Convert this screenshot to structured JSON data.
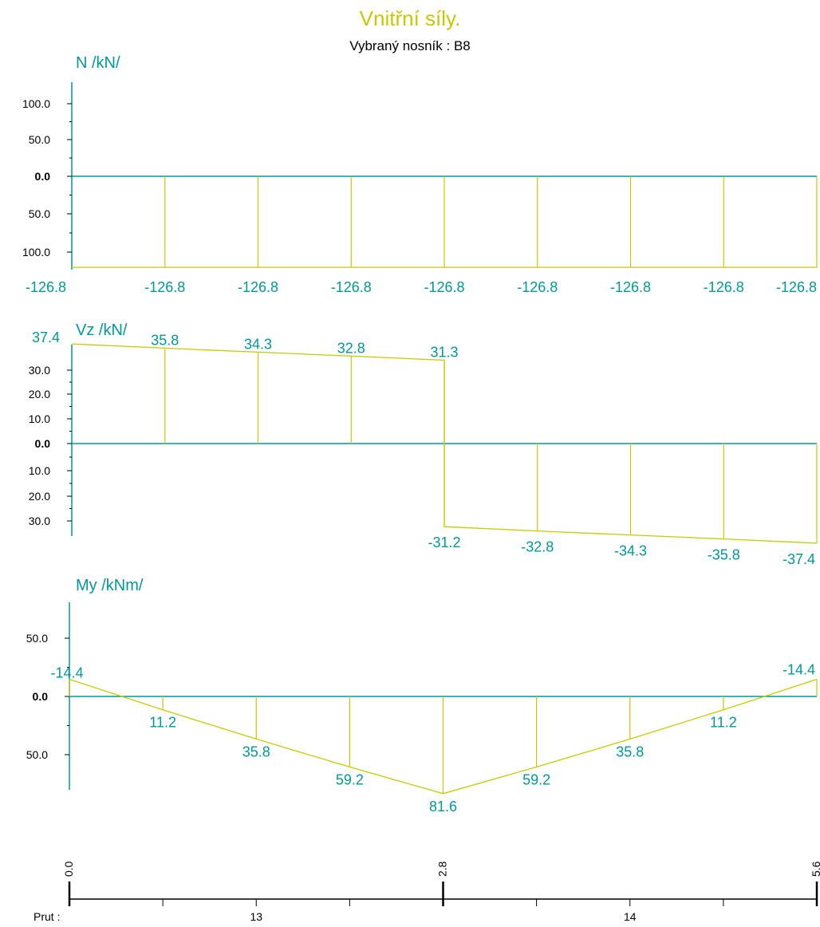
{
  "title": "Vnitřní síly.",
  "subtitle": "Vybraný nosník :  B8",
  "colors": {
    "diagram": "#c8c800",
    "axis": "#009999",
    "values": "#009999",
    "ticks": "#000000"
  },
  "chart_data": [
    {
      "type": "line",
      "title": "N /kN/",
      "stations": [
        0,
        0.7,
        1.4,
        2.1,
        2.8,
        3.5,
        4.2,
        4.9,
        5.6
      ],
      "values": [
        -126.8,
        -126.8,
        -126.8,
        -126.8,
        -126.8,
        -126.8,
        -126.8,
        -126.8,
        -126.8
      ],
      "value_labels": [
        "-126.8",
        "-126.8",
        "-126.8",
        "-126.8",
        "-126.8",
        "-126.8",
        "-126.8",
        "-126.8",
        "-126.8"
      ],
      "yticks": [
        "100.0",
        "50.0",
        "0.0",
        "50.0",
        "100.0"
      ],
      "grid": false
    },
    {
      "type": "line",
      "title": "Vz /kN/",
      "stations": [
        0,
        0.7,
        1.4,
        2.1,
        2.8,
        2.8,
        3.5,
        4.2,
        4.9,
        5.6
      ],
      "values": [
        37.4,
        35.8,
        34.3,
        32.8,
        31.3,
        -31.2,
        -32.8,
        -34.3,
        -35.8,
        -37.4
      ],
      "value_labels": [
        "37.4",
        "35.8",
        "34.3",
        "32.8",
        "31.3",
        "-31.2",
        "-32.8",
        "-34.3",
        "-35.8",
        "-37.4"
      ],
      "yticks": [
        "30.0",
        "20.0",
        "10.0",
        "0.0",
        "10.0",
        "20.0",
        "30.0"
      ],
      "grid": false
    },
    {
      "type": "line",
      "title": "My /kNm/",
      "stations": [
        0,
        0.7,
        1.4,
        2.1,
        2.8,
        3.5,
        4.2,
        4.9,
        5.6
      ],
      "values": [
        -14.4,
        11.2,
        35.8,
        59.2,
        81.6,
        59.2,
        35.8,
        11.2,
        -14.4
      ],
      "value_labels": [
        "-14.4",
        "11.2",
        "35.8",
        "59.2",
        "81.6",
        "59.2",
        "35.8",
        "11.2",
        "-14.4"
      ],
      "yticks": [
        "50.0",
        "0.0",
        "50.0"
      ],
      "grid": false
    }
  ],
  "ruler": {
    "ticks": [
      "0.0",
      "2.8",
      "5.6"
    ],
    "label": "Prut :",
    "members": [
      "13",
      "14"
    ]
  }
}
